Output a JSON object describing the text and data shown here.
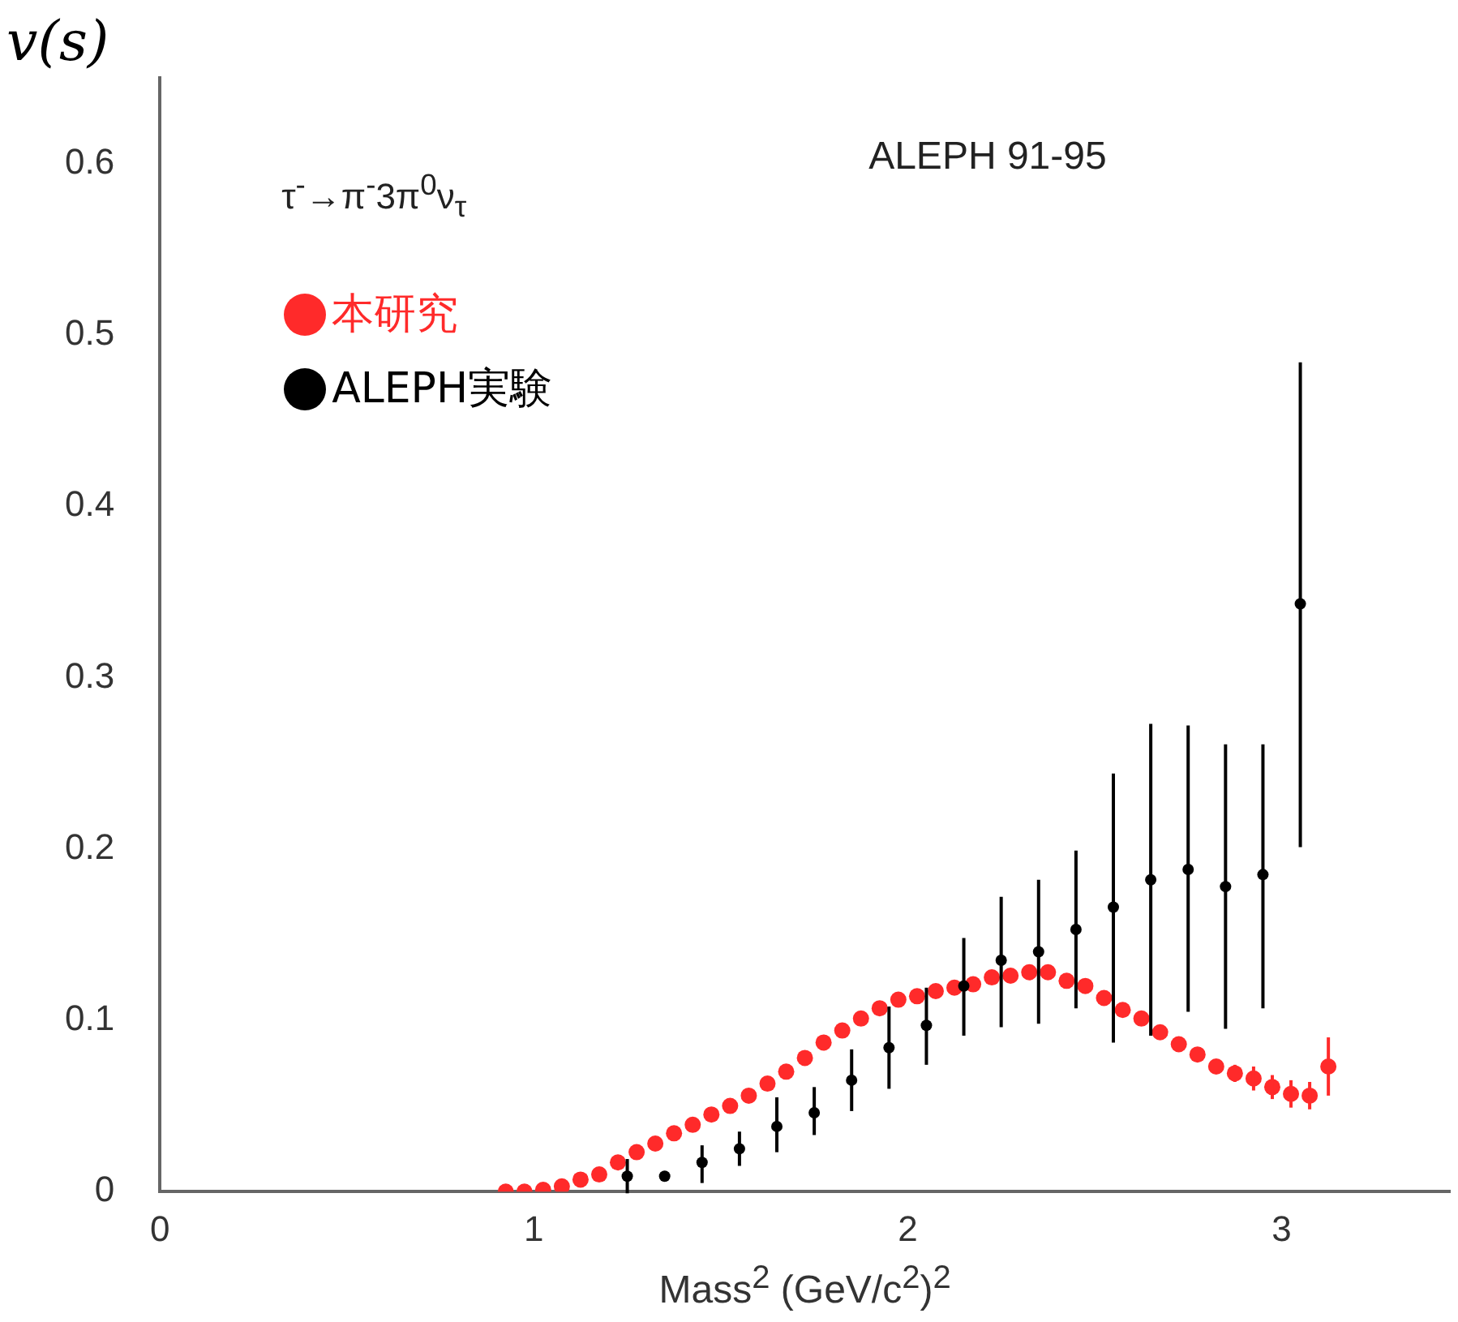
{
  "chart_data": {
    "type": "scatter",
    "ylabel": "v(s)",
    "xlabel": "Mass$^{2}$ (GeV/c$^{2}$)$^{2}$",
    "annotations": [
      "τ$^{-}$→π$^{-}$3π$^{0}$ν$_{τ}$",
      "ALEPH 91-95"
    ],
    "xlim": [
      0,
      3.45
    ],
    "xticks": [
      0,
      1,
      2,
      3
    ],
    "ylim": [
      0,
      0.65
    ],
    "yticks": [
      0,
      0.1,
      0.2,
      0.3,
      0.4,
      0.5,
      0.6
    ],
    "grid": false,
    "legend": "top left",
    "marker": "circle",
    "series": [
      {
        "name": "本研究",
        "color": "#ff2a2a",
        "x": [
          0.925,
          0.975,
          1.025,
          1.075,
          1.125,
          1.175,
          1.225,
          1.275,
          1.325,
          1.375,
          1.425,
          1.475,
          1.525,
          1.575,
          1.625,
          1.675,
          1.725,
          1.775,
          1.825,
          1.875,
          1.925,
          1.975,
          2.025,
          2.075,
          2.125,
          2.175,
          2.225,
          2.275,
          2.325,
          2.375,
          2.425,
          2.475,
          2.525,
          2.575,
          2.625,
          2.675,
          2.725,
          2.775,
          2.825,
          2.875,
          2.925,
          2.975,
          3.025,
          3.075,
          3.125
        ],
        "values": [
          0,
          0,
          0.001,
          0.003,
          0.007,
          0.01,
          0.017,
          0.023,
          0.028,
          0.034,
          0.039,
          0.045,
          0.05,
          0.056,
          0.063,
          0.07,
          0.078,
          0.087,
          0.094,
          0.101,
          0.107,
          0.112,
          0.114,
          0.117,
          0.119,
          0.121,
          0.125,
          0.126,
          0.128,
          0.128,
          0.123,
          0.12,
          0.113,
          0.106,
          0.101,
          0.093,
          0.086,
          0.08,
          0.073,
          0.069,
          0.066,
          0.061,
          0.057,
          0.056,
          0.073
        ],
        "errors": [
          null,
          null,
          null,
          null,
          null,
          null,
          null,
          null,
          null,
          null,
          null,
          null,
          null,
          null,
          null,
          null,
          null,
          null,
          null,
          null,
          null,
          null,
          null,
          null,
          null,
          null,
          null,
          null,
          null,
          null,
          null,
          null,
          null,
          null,
          null,
          null,
          null,
          null,
          null,
          0.005,
          0.007,
          0.007,
          0.008,
          0.008,
          0.017
        ]
      },
      {
        "name": "ALEPH実験",
        "color": "#000000",
        "x": [
          1.25,
          1.35,
          1.45,
          1.55,
          1.65,
          1.75,
          1.85,
          1.95,
          2.05,
          2.15,
          2.25,
          2.35,
          2.45,
          2.55,
          2.65,
          2.75,
          2.85,
          2.95,
          3.05
        ],
        "values": [
          0.009,
          0.009,
          0.017,
          0.025,
          0.038,
          0.046,
          0.065,
          0.084,
          0.097,
          0.12,
          0.135,
          0.14,
          0.153,
          0.166,
          0.182,
          0.188,
          0.178,
          0.185,
          0.343
        ],
        "errors": [
          0.01,
          null,
          [
            0.005,
            0.027
          ],
          [
            0.015,
            0.035
          ],
          [
            0.023,
            0.055
          ],
          [
            0.033,
            0.061
          ],
          [
            0.047,
            0.083
          ],
          [
            0.06,
            0.108
          ],
          [
            0.074,
            0.119
          ],
          [
            0.091,
            0.148
          ],
          [
            0.096,
            0.172
          ],
          [
            0.098,
            0.182
          ],
          [
            0.107,
            0.199
          ],
          [
            0.087,
            0.244
          ],
          [
            0.091,
            0.273
          ],
          [
            0.105,
            0.272
          ],
          [
            0.095,
            0.261
          ],
          [
            0.107,
            0.261
          ],
          [
            0.201,
            0.484
          ]
        ]
      }
    ]
  }
}
